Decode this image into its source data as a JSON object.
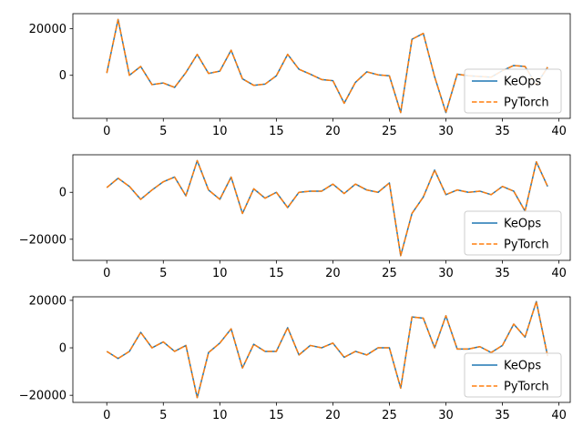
{
  "chart_data": [
    {
      "type": "line",
      "x": [
        0,
        1,
        2,
        3,
        4,
        5,
        6,
        7,
        8,
        9,
        10,
        11,
        12,
        13,
        14,
        15,
        16,
        17,
        18,
        19,
        20,
        21,
        22,
        23,
        24,
        25,
        26,
        27,
        28,
        29,
        30,
        31,
        32,
        33,
        34,
        35,
        36,
        37,
        38,
        39
      ],
      "series": [
        {
          "name": "KeOps",
          "color": "#1f77b4",
          "style": "solid",
          "values": [
            1000,
            24000,
            0,
            3800,
            -4000,
            -3300,
            -5200,
            1200,
            9000,
            800,
            1800,
            10800,
            -1500,
            -4300,
            -3800,
            -200,
            9000,
            2600,
            500,
            -1800,
            -2300,
            -12000,
            -3000,
            1500,
            200,
            -200,
            -16000,
            15500,
            18000,
            -600,
            -16000,
            500,
            -200,
            -500,
            -800,
            2000,
            4200,
            3800,
            -4000,
            3500
          ]
        },
        {
          "name": "PyTorch",
          "color": "#ff7f0e",
          "style": "dashed",
          "values": [
            1000,
            24000,
            0,
            3800,
            -4000,
            -3300,
            -5200,
            1200,
            9000,
            800,
            1800,
            10800,
            -1500,
            -4300,
            -3800,
            -200,
            9000,
            2600,
            500,
            -1800,
            -2300,
            -12000,
            -3000,
            1500,
            200,
            -200,
            -16000,
            15500,
            18000,
            -600,
            -16000,
            500,
            -200,
            -500,
            -800,
            2000,
            4200,
            3800,
            -4000,
            3500
          ]
        }
      ],
      "xlim": [
        -3,
        41
      ],
      "ylim": [
        -18500,
        26500
      ],
      "xticks": [
        0,
        5,
        10,
        15,
        20,
        25,
        30,
        35,
        40
      ],
      "yticks": [
        0,
        20000
      ],
      "legend_position": "lower-right"
    },
    {
      "type": "line",
      "x": [
        0,
        1,
        2,
        3,
        4,
        5,
        6,
        7,
        8,
        9,
        10,
        11,
        12,
        13,
        14,
        15,
        16,
        17,
        18,
        19,
        20,
        21,
        22,
        23,
        24,
        25,
        26,
        27,
        28,
        29,
        30,
        31,
        32,
        33,
        34,
        35,
        36,
        37,
        38,
        39
      ],
      "series": [
        {
          "name": "KeOps",
          "color": "#1f77b4",
          "style": "solid",
          "values": [
            2000,
            6000,
            2500,
            -3000,
            1000,
            4500,
            6500,
            -1500,
            13500,
            1000,
            -3000,
            6500,
            -9000,
            1500,
            -2500,
            0,
            -6500,
            0,
            500,
            500,
            3500,
            -500,
            3500,
            1000,
            0,
            4000,
            -27000,
            -9000,
            -2000,
            9500,
            -1000,
            1000,
            0,
            500,
            -1000,
            2500,
            500,
            -8000,
            13000,
            2500
          ]
        },
        {
          "name": "PyTorch",
          "color": "#ff7f0e",
          "style": "dashed",
          "values": [
            2000,
            6000,
            2500,
            -3000,
            1000,
            4500,
            6500,
            -1500,
            13500,
            1000,
            -3000,
            6500,
            -9000,
            1500,
            -2500,
            0,
            -6500,
            0,
            500,
            500,
            3500,
            -500,
            3500,
            1000,
            0,
            4000,
            -27000,
            -9000,
            -2000,
            9500,
            -1000,
            1000,
            0,
            500,
            -1000,
            2500,
            500,
            -8000,
            13000,
            2500
          ]
        }
      ],
      "xlim": [
        -3,
        41
      ],
      "ylim": [
        -29000,
        16000
      ],
      "xticks": [
        0,
        5,
        10,
        15,
        20,
        25,
        30,
        35,
        40
      ],
      "yticks": [
        -20000,
        0
      ],
      "legend_position": "lower-right"
    },
    {
      "type": "line",
      "x": [
        0,
        1,
        2,
        3,
        4,
        5,
        6,
        7,
        8,
        9,
        10,
        11,
        12,
        13,
        14,
        15,
        16,
        17,
        18,
        19,
        20,
        21,
        22,
        23,
        24,
        25,
        26,
        27,
        28,
        29,
        30,
        31,
        32,
        33,
        34,
        35,
        36,
        37,
        38,
        39
      ],
      "series": [
        {
          "name": "KeOps",
          "color": "#1f77b4",
          "style": "solid",
          "values": [
            -1500,
            -4500,
            -1500,
            6500,
            0,
            2500,
            -1500,
            1000,
            -21000,
            -2000,
            2000,
            8000,
            -8500,
            1500,
            -1500,
            -1500,
            8500,
            -3000,
            1000,
            0,
            2000,
            -4000,
            -1500,
            -3000,
            0,
            0,
            -17000,
            13000,
            12500,
            0,
            13500,
            -500,
            -500,
            500,
            -2000,
            1000,
            10000,
            4500,
            19500,
            -3500
          ]
        },
        {
          "name": "PyTorch",
          "color": "#ff7f0e",
          "style": "dashed",
          "values": [
            -1500,
            -4500,
            -1500,
            6500,
            0,
            2500,
            -1500,
            1000,
            -21000,
            -2000,
            2000,
            8000,
            -8500,
            1500,
            -1500,
            -1500,
            8500,
            -3000,
            1000,
            0,
            2000,
            -4000,
            -1500,
            -3000,
            0,
            0,
            -17000,
            13000,
            12500,
            0,
            13500,
            -500,
            -500,
            500,
            -2000,
            1000,
            10000,
            4500,
            19500,
            -3500
          ]
        }
      ],
      "xlim": [
        -3,
        41
      ],
      "ylim": [
        -23000,
        21500
      ],
      "xticks": [
        0,
        5,
        10,
        15,
        20,
        25,
        30,
        35,
        40
      ],
      "yticks": [
        -20000,
        0,
        20000
      ],
      "legend_position": "lower-right"
    }
  ]
}
